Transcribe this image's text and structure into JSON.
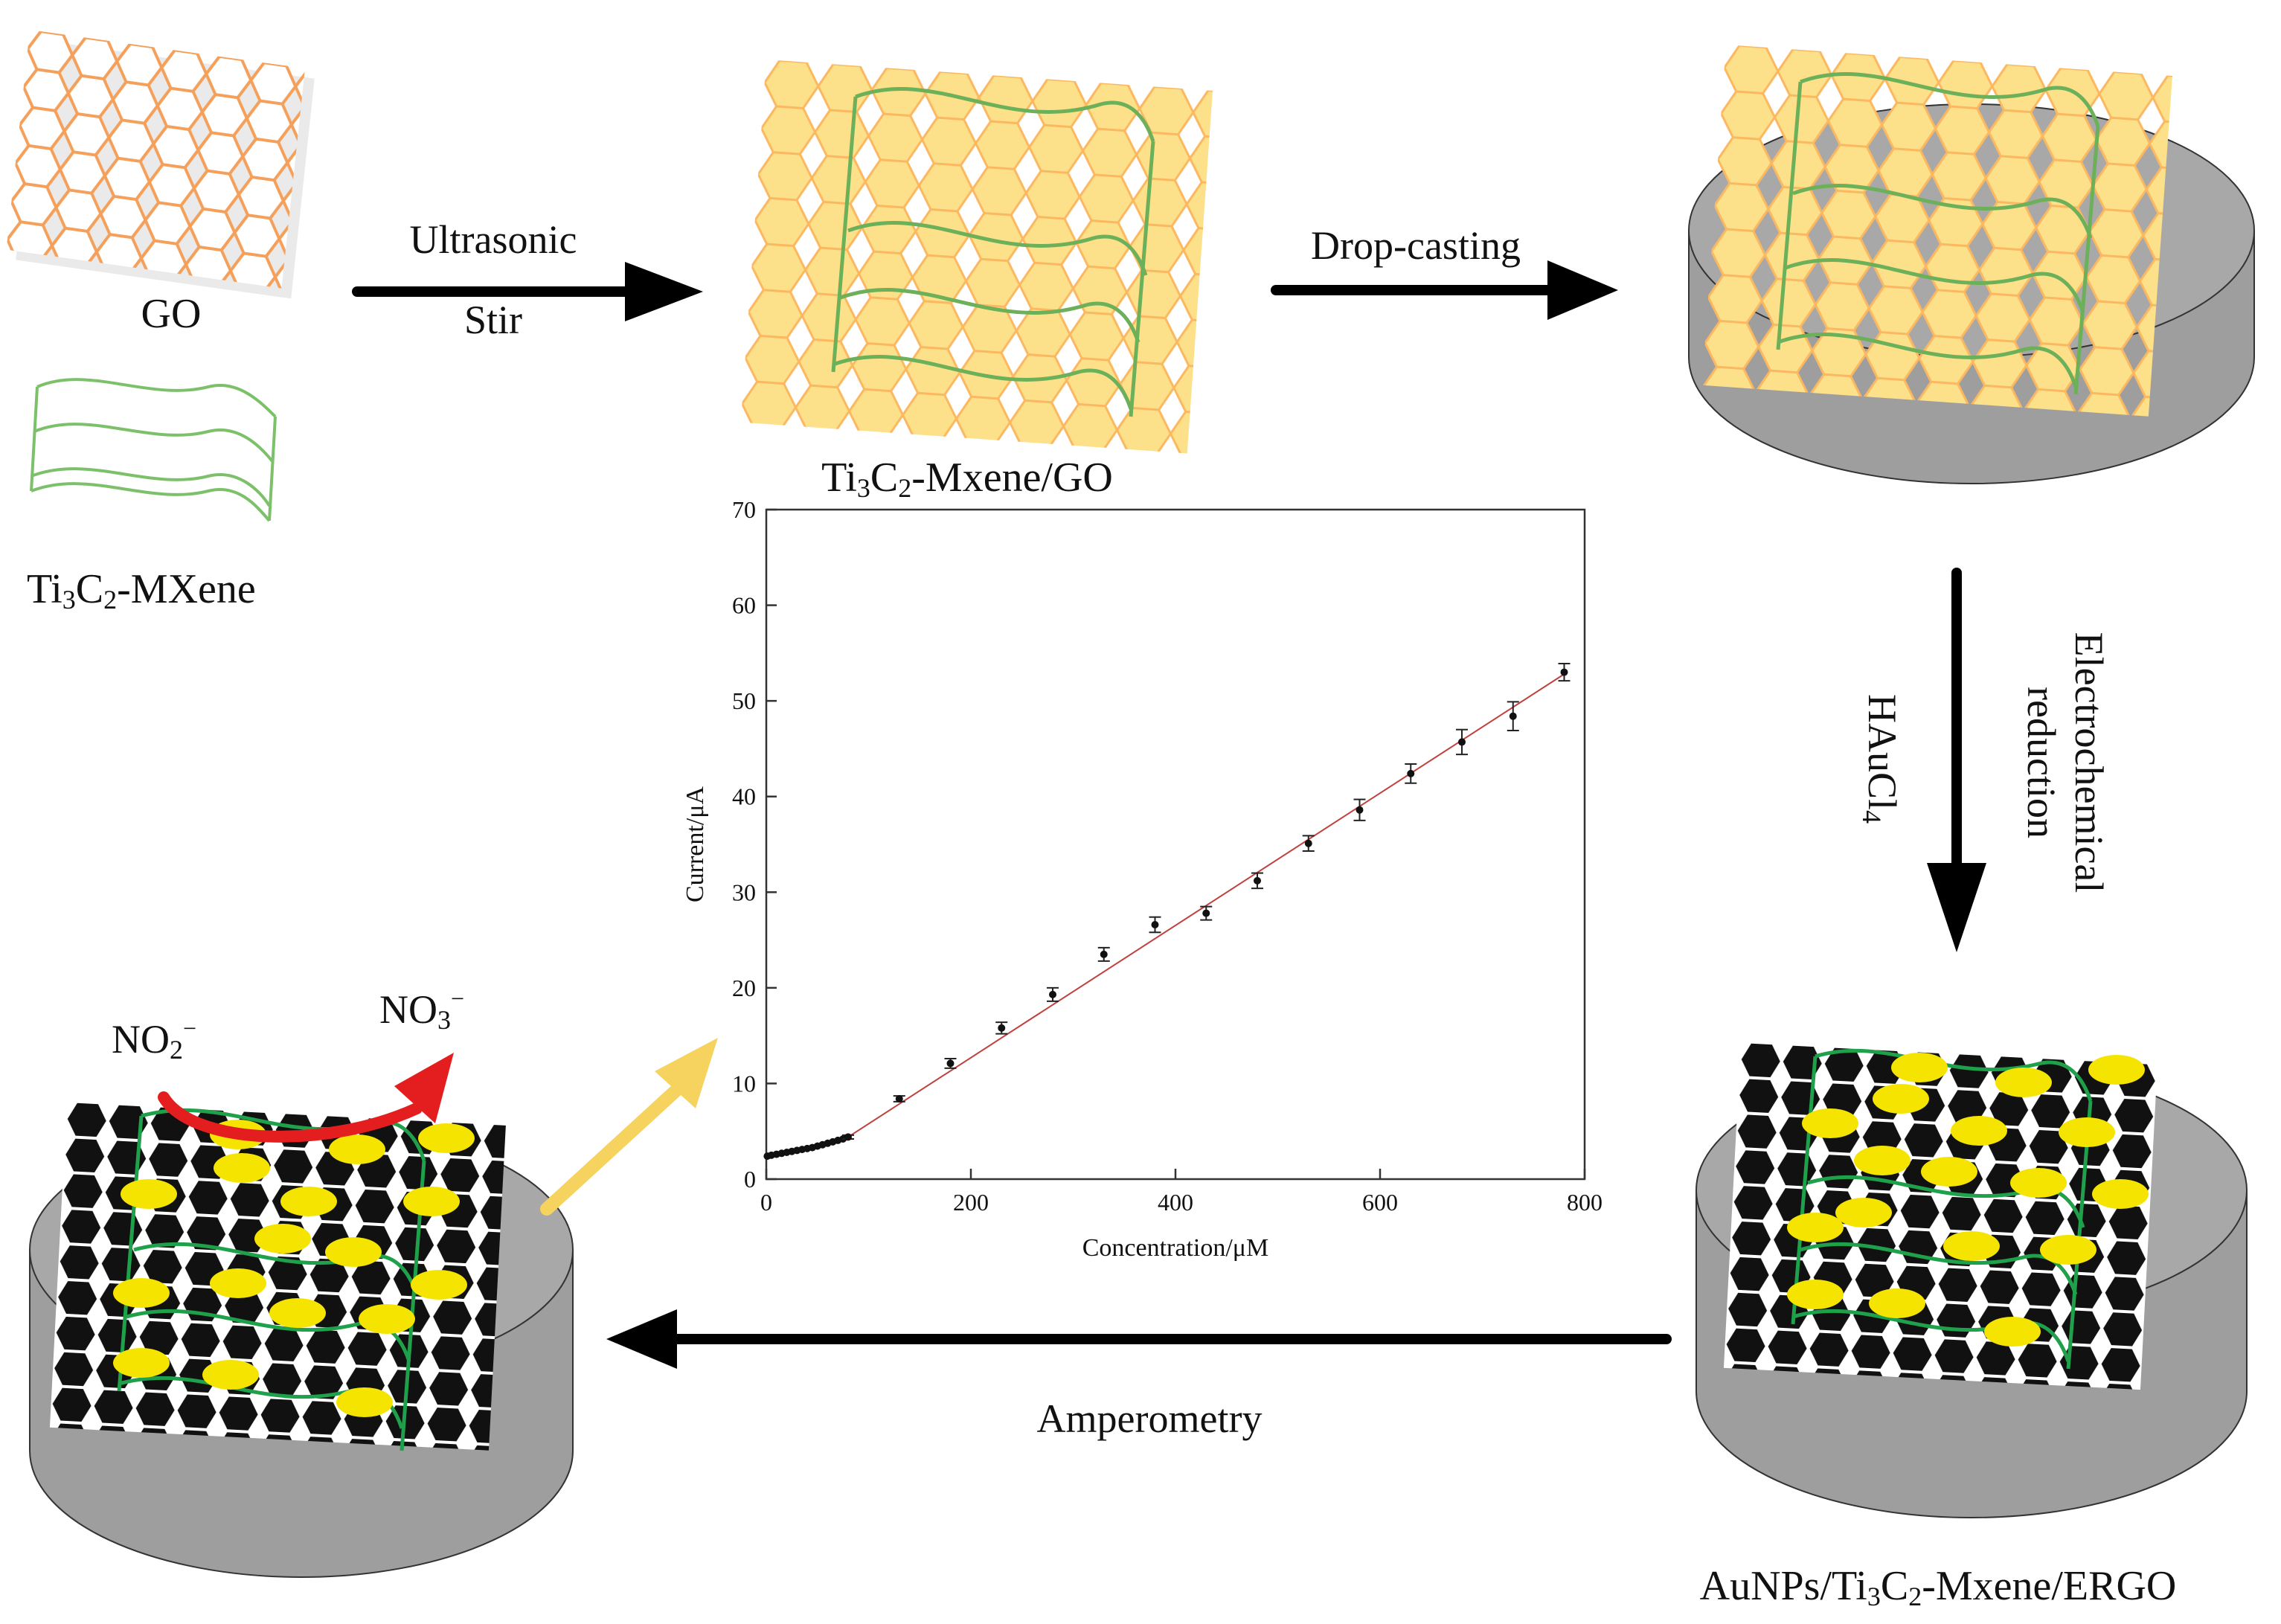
{
  "labels": {
    "go": "GO",
    "mxene_prefix": "Ti",
    "mxene_sub1": "3",
    "mxene_mid": "C",
    "mxene_sub2": "2",
    "mxene_suffix": "-MXene",
    "composite_prefix": "Ti",
    "composite_sub1": "3",
    "composite_mid": "C",
    "composite_sub2": "2",
    "composite_suffix": "-Mxene/GO",
    "final_prefix": "AuNPs/Ti",
    "final_sub1": "3",
    "final_mid": "C",
    "final_sub2": "2",
    "final_suffix": "-Mxene/ERGO"
  },
  "steps": {
    "ultrasonic": "Ultrasonic",
    "stir": "Stir",
    "drop_casting": "Drop-casting",
    "electrochemical": "Electrochemical",
    "reduction": "reduction",
    "haucl_main": "HAuCl",
    "haucl_sub": "4",
    "amperometry": "Amperometry"
  },
  "reaction": {
    "reactant_main": "NO",
    "reactant_sub": "2",
    "reactant_sup": "−",
    "product_main": "NO",
    "product_sub": "3",
    "product_sup": "−"
  },
  "colors": {
    "go_orange": "#f4a05a",
    "mxene_green": "#7cc06a",
    "sheet_yellow": "#fde08a",
    "electrode_grey": "#9e9e9e",
    "gold_np": "#f5e400",
    "ergo_black": "#111111",
    "red_arrow": "#e41e1e",
    "yellow_arrow": "#f6d25e"
  },
  "chart_data": {
    "type": "scatter",
    "xlabel": "Concentration/μM",
    "ylabel": "Current/μA",
    "xlim": [
      0,
      800
    ],
    "ylim": [
      0,
      70
    ],
    "xticks": [
      0,
      200,
      400,
      600,
      800
    ],
    "yticks": [
      0,
      10,
      20,
      30,
      40,
      50,
      60,
      70
    ],
    "grid": false,
    "series": [
      {
        "x": [
          1,
          5,
          10,
          15,
          20,
          25,
          30,
          35,
          40,
          45,
          50,
          55,
          60,
          65,
          70,
          75,
          80,
          130,
          180,
          230,
          280,
          330,
          380,
          430,
          480,
          530,
          580,
          630,
          680,
          730,
          780
        ],
        "y": [
          2.4,
          2.5,
          2.6,
          2.7,
          2.8,
          2.9,
          3.0,
          3.1,
          3.2,
          3.3,
          3.45,
          3.6,
          3.75,
          3.9,
          4.05,
          4.2,
          4.4,
          8.4,
          12.1,
          15.8,
          19.3,
          23.5,
          26.6,
          27.8,
          31.2,
          35.1,
          38.6,
          42.4,
          45.7,
          48.4,
          53.0
        ],
        "err": [
          0.1,
          0.1,
          0.1,
          0.1,
          0.1,
          0.1,
          0.1,
          0.1,
          0.1,
          0.1,
          0.1,
          0.1,
          0.1,
          0.1,
          0.1,
          0.1,
          0.2,
          0.3,
          0.5,
          0.6,
          0.7,
          0.7,
          0.8,
          0.7,
          0.8,
          0.8,
          1.1,
          1.0,
          1.3,
          1.5,
          0.9
        ]
      }
    ],
    "fit_lines": [
      {
        "x": [
          0,
          80
        ],
        "y": [
          2.4,
          4.4
        ]
      },
      {
        "x": [
          80,
          780
        ],
        "y": [
          4.4,
          52.8
        ]
      }
    ]
  }
}
